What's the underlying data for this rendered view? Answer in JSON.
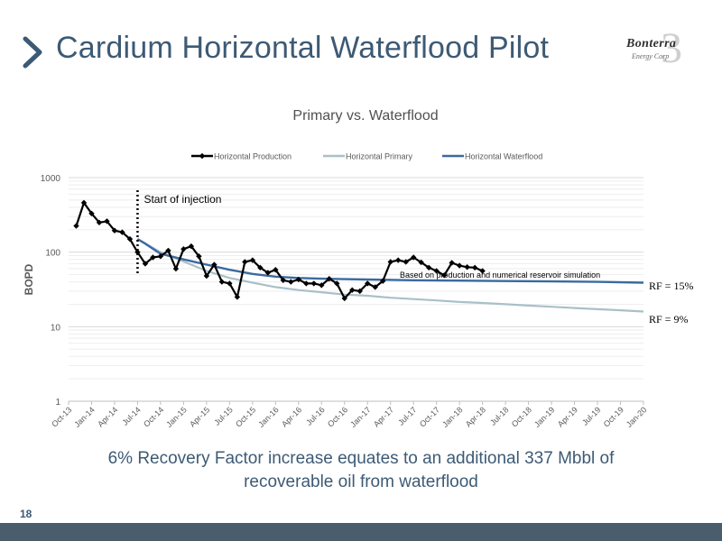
{
  "slide": {
    "title": "Cardium Horizontal Waterflood Pilot",
    "page_number": "18",
    "callout_line1": "6% Recovery Factor increase equates to an additional 337 Mbbl of",
    "callout_line2": "recoverable oil from waterflood",
    "logo_text": "Bonterra",
    "logo_subtext": "Energy Corp",
    "colors": {
      "title": "#3d5a75",
      "footer": "#4a5d6c"
    }
  },
  "chart_data": {
    "type": "line",
    "title": "Primary vs. Waterflood",
    "ylabel": "BOPD",
    "xlabel": "",
    "y_scale": "log",
    "ylim": [
      1,
      1000
    ],
    "y_ticks": [
      "1",
      "10",
      "100",
      "1000"
    ],
    "x_ticks": [
      "Oct-13",
      "Jan-14",
      "Apr-14",
      "Jul-14",
      "Oct-14",
      "Jan-15",
      "Apr-15",
      "Jul-15",
      "Oct-15",
      "Jan-16",
      "Apr-16",
      "Jul-16",
      "Oct-16",
      "Jan-17",
      "Apr-17",
      "Jul-17",
      "Oct-17",
      "Jan-18",
      "Apr-18",
      "Jul-18",
      "Oct-18",
      "Jan-19",
      "Apr-19",
      "Jul-19",
      "Oct-19",
      "Jan-20"
    ],
    "grid": true,
    "legend_position": "top",
    "legend": [
      "Horizontal Production",
      "Horizontal Primary",
      "Horizontal Waterflood"
    ],
    "series": [
      {
        "name": "Horizontal Production",
        "color": "#000000",
        "marker": "diamond",
        "x": [
          "Nov-13",
          "Dec-13",
          "Jan-14",
          "Feb-14",
          "Mar-14",
          "Apr-14",
          "May-14",
          "Jun-14",
          "Jul-14",
          "Aug-14",
          "Sep-14",
          "Oct-14",
          "Nov-14",
          "Dec-14",
          "Jan-15",
          "Feb-15",
          "Mar-15",
          "Apr-15",
          "May-15",
          "Jun-15",
          "Jul-15",
          "Aug-15",
          "Sep-15",
          "Oct-15",
          "Nov-15",
          "Dec-15",
          "Jan-16",
          "Feb-16",
          "Mar-16",
          "Apr-16",
          "May-16",
          "Jun-16",
          "Jul-16",
          "Aug-16",
          "Sep-16",
          "Oct-16",
          "Nov-16",
          "Dec-16",
          "Jan-17",
          "Feb-17",
          "Mar-17",
          "Apr-17",
          "May-17",
          "Jun-17",
          "Jul-17",
          "Aug-17",
          "Sep-17",
          "Oct-17",
          "Nov-17",
          "Dec-17",
          "Jan-18",
          "Feb-18",
          "Mar-18",
          "Apr-18"
        ],
        "values": [
          225,
          460,
          330,
          250,
          260,
          195,
          185,
          150,
          100,
          70,
          85,
          88,
          105,
          60,
          110,
          120,
          88,
          48,
          68,
          40,
          38,
          25,
          74,
          78,
          62,
          53,
          58,
          42,
          40,
          43,
          38,
          38,
          36,
          44,
          38,
          24,
          31,
          30,
          38,
          34,
          41,
          74,
          78,
          74,
          85,
          73,
          62,
          56,
          49,
          72,
          66,
          63,
          62,
          56
        ]
      },
      {
        "name": "Horizontal Primary",
        "color": "#a9c0c8",
        "x": [
          "Jul-14",
          "Oct-14",
          "Jan-15",
          "Apr-15",
          "Jul-15",
          "Oct-15",
          "Jan-16",
          "Apr-16",
          "Jul-16",
          "Oct-16",
          "Jan-17",
          "Apr-17",
          "Jul-17",
          "Oct-17",
          "Jan-18",
          "Apr-18",
          "Jul-18",
          "Oct-18",
          "Jan-19",
          "Apr-19",
          "Jul-19",
          "Oct-19",
          "Jan-20"
        ],
        "values": [
          150,
          100,
          75,
          56,
          45,
          39,
          34,
          31,
          29,
          27,
          26,
          24.5,
          23.5,
          22.5,
          21.5,
          20.8,
          20,
          19.2,
          18.5,
          17.8,
          17.2,
          16.6,
          16
        ]
      },
      {
        "name": "Horizontal Waterflood",
        "color": "#3b6aa0",
        "x": [
          "Jul-14",
          "Aug-14",
          "Oct-14",
          "Jan-15",
          "Apr-15",
          "Jul-15",
          "Oct-15",
          "Jan-16",
          "Apr-16",
          "Jul-16",
          "Oct-16",
          "Jan-17",
          "Jul-17",
          "Jan-18",
          "Jul-18",
          "Jan-19",
          "Jul-19",
          "Jan-20"
        ],
        "values": [
          150,
          130,
          95,
          80,
          68,
          58,
          51,
          47,
          45,
          44,
          43.5,
          43,
          42,
          41.5,
          41,
          40.5,
          40,
          39
        ]
      }
    ],
    "annotations": [
      {
        "text": "Start of injection",
        "x": "Jul-14"
      },
      {
        "text": "Based on production and numerical reservoir simulation"
      },
      {
        "text": "RF = 15%"
      },
      {
        "text": "RF = 9%"
      }
    ]
  }
}
